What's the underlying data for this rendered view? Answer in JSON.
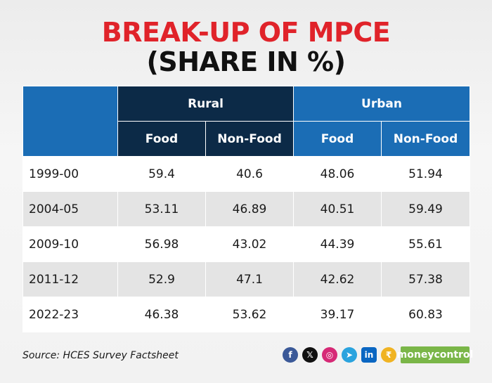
{
  "title": {
    "line1": "BREAK-UP OF MPCE",
    "line2": "(SHARE IN %)"
  },
  "table": {
    "group_headers": [
      "Rural",
      "Urban"
    ],
    "sub_headers": [
      "Food",
      "Non-Food",
      "Food",
      "Non-Food"
    ],
    "rows": [
      {
        "label": "1999-00",
        "values": [
          "59.4",
          "40.6",
          "48.06",
          "51.94"
        ]
      },
      {
        "label": "2004-05",
        "values": [
          "53.11",
          "46.89",
          "40.51",
          "59.49"
        ]
      },
      {
        "label": "2009-10",
        "values": [
          "56.98",
          "43.02",
          "44.39",
          "55.61"
        ]
      },
      {
        "label": "2011-12",
        "values": [
          "52.9",
          "47.1",
          "42.62",
          "57.38"
        ]
      },
      {
        "label": "2022-23",
        "values": [
          "46.38",
          "53.62",
          "39.17",
          "60.83"
        ]
      }
    ]
  },
  "source": "Source: HCES Survey Factsheet",
  "brand": "moneycontrol",
  "social_icons": [
    {
      "name": "facebook-icon",
      "glyph": "f",
      "color": "#3b5998"
    },
    {
      "name": "x-icon",
      "glyph": "𝕏",
      "color": "#111111"
    },
    {
      "name": "instagram-icon",
      "glyph": "◎",
      "color": "#d62976"
    },
    {
      "name": "telegram-icon",
      "glyph": "➤",
      "color": "#2aa3de"
    },
    {
      "name": "linkedin-icon",
      "glyph": "in",
      "color": "#0a66c2"
    },
    {
      "name": "coin-icon",
      "glyph": "₹",
      "color": "#f0b323"
    }
  ],
  "colors": {
    "title_red": "#e0232a",
    "rural_header": "#0c2a47",
    "urban_header": "#1b6db5",
    "brand_green": "#7ab648"
  },
  "chart_data": {
    "type": "table",
    "title": "BREAK-UP OF MPCE (SHARE IN %)",
    "columns": [
      "Rural Food",
      "Rural Non-Food",
      "Urban Food",
      "Urban Non-Food"
    ],
    "rows": [
      "1999-00",
      "2004-05",
      "2009-10",
      "2011-12",
      "2022-23"
    ],
    "values": [
      [
        59.4,
        40.6,
        48.06,
        51.94
      ],
      [
        53.11,
        46.89,
        40.51,
        59.49
      ],
      [
        56.98,
        43.02,
        44.39,
        55.61
      ],
      [
        52.9,
        47.1,
        42.62,
        57.38
      ],
      [
        46.38,
        53.62,
        39.17,
        60.83
      ]
    ]
  }
}
